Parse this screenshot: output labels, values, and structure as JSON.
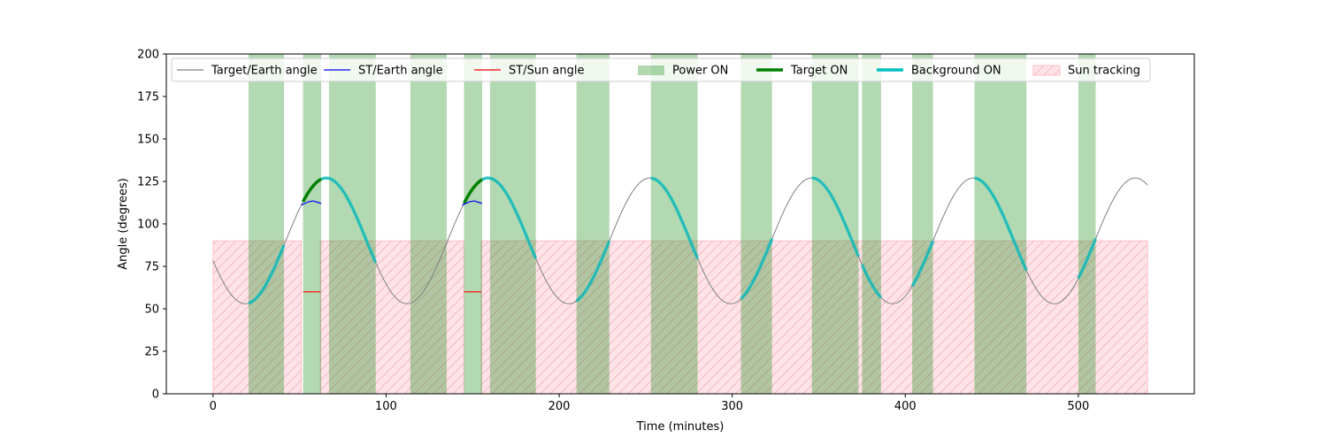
{
  "chart_data": {
    "type": "line",
    "xlabel": "Time (minutes)",
    "ylabel": "Angle (degrees)",
    "xlim": [
      -27,
      567
    ],
    "ylim": [
      0,
      200
    ],
    "xticks": [
      0,
      100,
      200,
      300,
      400,
      500
    ],
    "yticks": [
      0,
      25,
      50,
      75,
      100,
      125,
      150,
      175,
      200
    ],
    "grid": false,
    "legend_position": "top",
    "colors": {
      "target_earth": "#808080",
      "st_earth": "#0000ff",
      "st_sun": "#ff0000",
      "power_on": "#008000",
      "target_on": "#008000",
      "background_on": "#00bfbf",
      "sun_tracking": "#ffc0cb"
    },
    "legend": [
      {
        "key": "target_earth",
        "label": "Target/Earth angle",
        "style": "thin-line"
      },
      {
        "key": "st_earth",
        "label": "ST/Earth angle",
        "style": "thin-line"
      },
      {
        "key": "st_sun",
        "label": "ST/Sun angle",
        "style": "thin-line"
      },
      {
        "key": "power_on",
        "label": "Power ON",
        "style": "patch"
      },
      {
        "key": "target_on",
        "label": "Target ON",
        "style": "thick-line"
      },
      {
        "key": "background_on",
        "label": "Background ON",
        "style": "thick-line"
      },
      {
        "key": "sun_tracking",
        "label": "Sun tracking",
        "style": "hatch"
      }
    ],
    "target_earth_curve": {
      "x_range": [
        0,
        540
      ],
      "mean": 90,
      "amplitude": 37,
      "period_min": 93.5,
      "phase_min": 42
    },
    "sun_tracking_bands": [
      {
        "x": [
          0,
          51
        ],
        "y": [
          0,
          90
        ]
      },
      {
        "x": [
          62,
          145
        ],
        "y": [
          0,
          90
        ]
      },
      {
        "x": [
          155,
          540
        ],
        "y": [
          0,
          90
        ]
      }
    ],
    "power_on_bands": [
      [
        20.5,
        41
      ],
      [
        52,
        62.5
      ],
      [
        67,
        94
      ],
      [
        114,
        135
      ],
      [
        145,
        155.5
      ],
      [
        160,
        186.5
      ],
      [
        210,
        229
      ],
      [
        253,
        280
      ],
      [
        305,
        323
      ],
      [
        346,
        373
      ],
      [
        375,
        386
      ],
      [
        404,
        416
      ],
      [
        440,
        470
      ],
      [
        500,
        510
      ]
    ],
    "target_on_segments": [
      [
        52,
        62.5
      ],
      [
        145,
        155.5
      ]
    ],
    "background_on_segments": [
      [
        20.5,
        41
      ],
      [
        62.5,
        94
      ],
      [
        155.5,
        186.5
      ],
      [
        210,
        229
      ],
      [
        253,
        280
      ],
      [
        305,
        323
      ],
      [
        346,
        373
      ],
      [
        375,
        386
      ],
      [
        404,
        416
      ],
      [
        440,
        470
      ],
      [
        500,
        510
      ]
    ],
    "st_earth_series": [
      {
        "x": [
          51,
          55,
          58,
          61,
          62.5
        ],
        "y": [
          111,
          113,
          113.5,
          112.5,
          112
        ]
      },
      {
        "x": [
          144,
          148,
          151,
          154,
          155.5
        ],
        "y": [
          111,
          113,
          113.5,
          112.5,
          112
        ]
      }
    ],
    "st_sun_series": [
      {
        "x": [
          52,
          62
        ],
        "y": [
          60,
          60
        ]
      },
      {
        "x": [
          145,
          155
        ],
        "y": [
          60,
          60
        ]
      }
    ]
  }
}
